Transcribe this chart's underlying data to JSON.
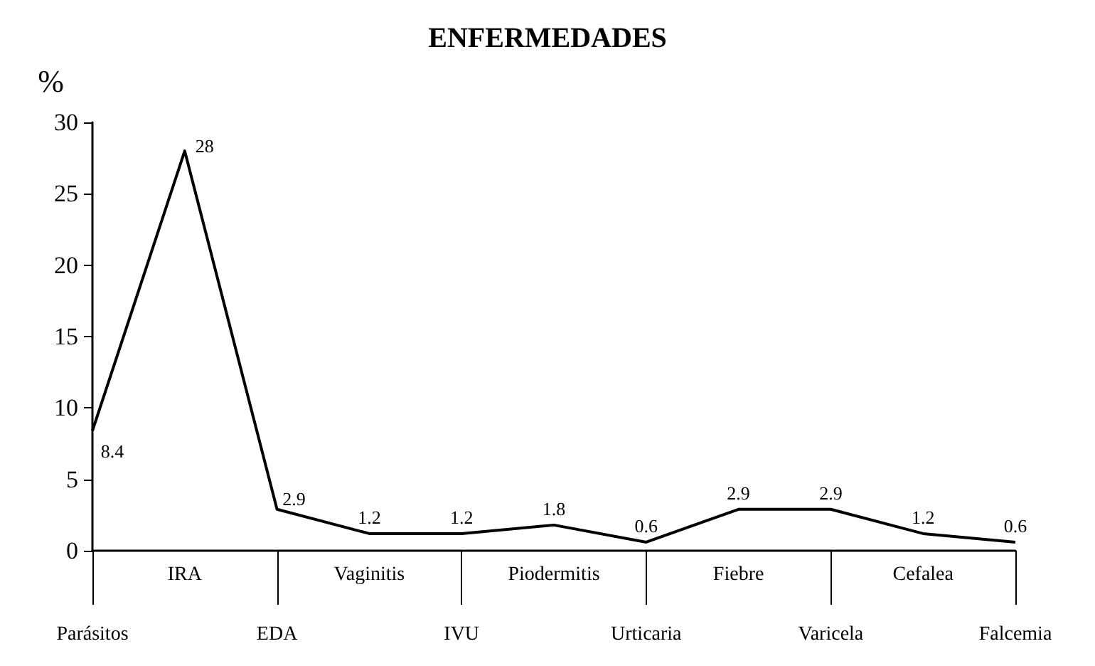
{
  "chart_data": {
    "type": "line",
    "title": "ENFERMEDADES",
    "ylabel": "%",
    "categories": [
      "Parásitos",
      "IRA",
      "EDA",
      "Vaginitis",
      "IVU",
      "Piodermitis",
      "Urticaria",
      "Fiebre",
      "Varicela",
      "Cefalea",
      "Falcemia"
    ],
    "series": [
      {
        "color": "#000000",
        "values": [
          8.4,
          28,
          2.9,
          1.2,
          1.2,
          1.8,
          0.6,
          2.9,
          2.9,
          1.2,
          0.6
        ]
      }
    ],
    "ylim": [
      0,
      30
    ],
    "yticks": [
      0,
      5,
      10,
      15,
      20,
      25,
      30
    ],
    "data_labels": true,
    "grid": false,
    "marker": "none",
    "line_style": "solid"
  }
}
